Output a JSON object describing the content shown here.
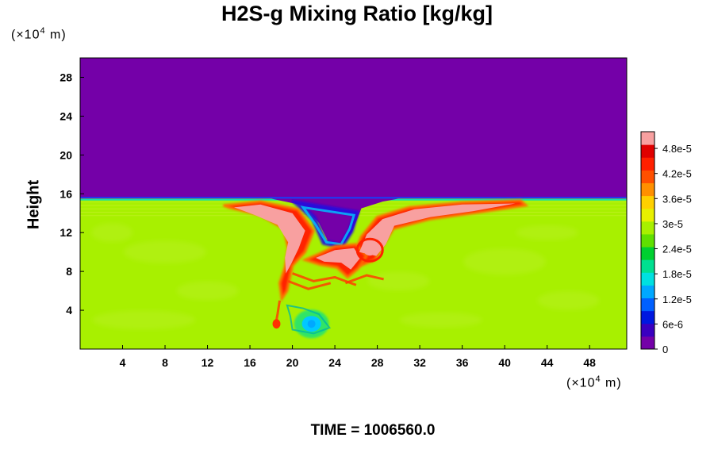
{
  "chart_data": {
    "type": "heatmap",
    "title": "H2S-g Mixing Ratio [kg/kg]",
    "ylabel": "Height",
    "x_unit_label": "(×10",
    "x_unit_exp": "4",
    "x_unit_suffix": " m)",
    "y_unit_label": "(×10",
    "y_unit_exp": "4",
    "y_unit_suffix": " m)",
    "xlim": [
      0,
      51.5
    ],
    "ylim": [
      0,
      30
    ],
    "x_ticks": [
      4,
      8,
      12,
      16,
      20,
      24,
      28,
      32,
      36,
      40,
      44,
      48
    ],
    "x_tick_labels": [
      "4",
      "8",
      "12",
      "16",
      "20",
      "24",
      "28",
      "32",
      "36",
      "40",
      "44",
      "48"
    ],
    "y_ticks": [
      4,
      8,
      12,
      16,
      20,
      24,
      28
    ],
    "y_tick_labels": [
      "4",
      "8",
      "12",
      "16",
      "20",
      "24",
      "28"
    ],
    "colorbar": {
      "min": 0,
      "max": 5.2e-05,
      "ticks": [
        0,
        6e-06,
        1.2e-05,
        1.8e-05,
        2.4e-05,
        3e-05,
        3.6e-05,
        4.2e-05,
        4.8e-05
      ],
      "tick_labels": [
        "0",
        "6e-6",
        "1.2e-5",
        "1.8e-5",
        "2.4e-5",
        "3e-5",
        "3.6e-5",
        "4.2e-5",
        "4.8e-5"
      ],
      "colors": [
        "#7400a8",
        "#3a00c0",
        "#0018e0",
        "#0060ff",
        "#00a8ff",
        "#00e0e0",
        "#00e090",
        "#00d030",
        "#60e000",
        "#a8f000",
        "#e8f000",
        "#ffd000",
        "#ff9000",
        "#ff5000",
        "#ff2000",
        "#e00000",
        "#f8a0a0"
      ]
    },
    "field": {
      "upper_layer_top": 30,
      "upper_layer_value": 0,
      "interface_height": 15.5,
      "background_value": 2.85e-05,
      "plume_region_x": [
        17,
        42
      ],
      "core_value": 5e-05,
      "vortex_center": [
        21.8,
        2.6
      ],
      "vortex_value": 1.5e-05
    },
    "annotation": "TIME = 1006560.0"
  }
}
